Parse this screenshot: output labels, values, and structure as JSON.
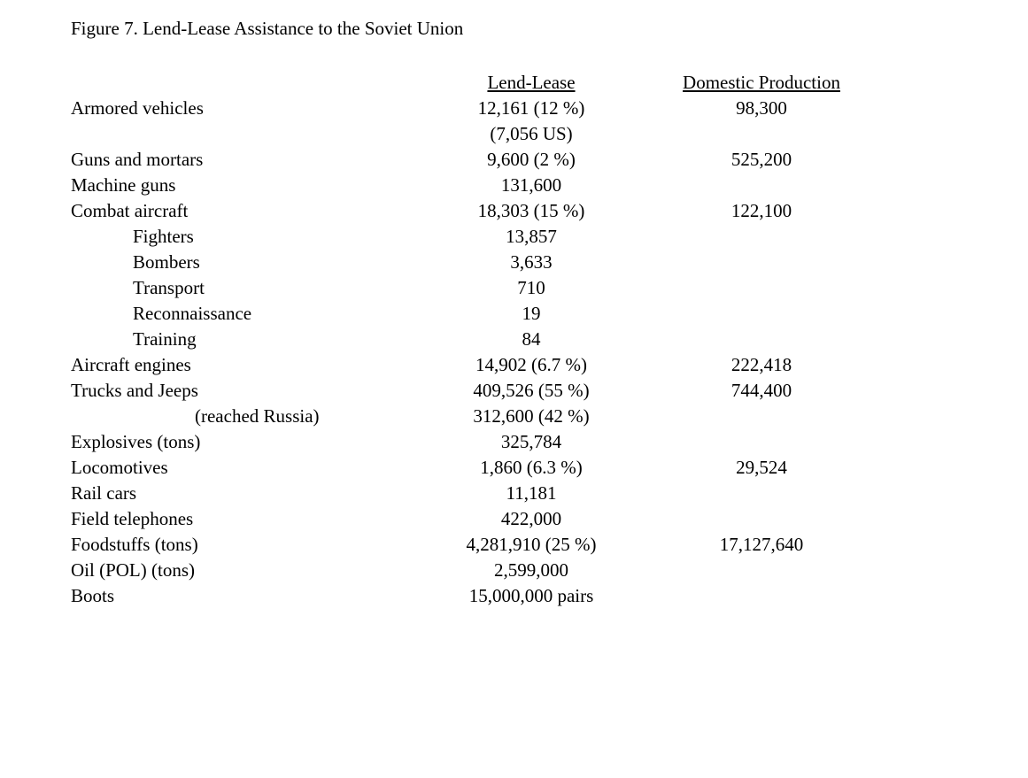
{
  "title": "Figure 7. Lend-Lease Assistance to the Soviet Union",
  "headers": {
    "col1": "",
    "col2": "Lend-Lease",
    "col3": "Domestic Production"
  },
  "rows": [
    {
      "label": "Armored vehicles",
      "indent": 0,
      "lend": "12,161 (12 %)",
      "dom": "98,300"
    },
    {
      "label": "",
      "indent": 0,
      "lend": "(7,056 US)",
      "dom": ""
    },
    {
      "label": "Guns and mortars",
      "indent": 0,
      "lend": "9,600 (2 %)",
      "dom": "525,200"
    },
    {
      "label": "Machine guns",
      "indent": 0,
      "lend": "131,600",
      "dom": ""
    },
    {
      "label": "Combat aircraft",
      "indent": 0,
      "lend": "18,303 (15 %)",
      "dom": "122,100"
    },
    {
      "label": "Fighters",
      "indent": 1,
      "lend": "13,857",
      "dom": ""
    },
    {
      "label": "Bombers",
      "indent": 1,
      "lend": "3,633",
      "dom": ""
    },
    {
      "label": "Transport",
      "indent": 1,
      "lend": "710",
      "dom": ""
    },
    {
      "label": "Reconnaissance",
      "indent": 1,
      "lend": "19",
      "dom": ""
    },
    {
      "label": "Training",
      "indent": 1,
      "lend": "84",
      "dom": ""
    },
    {
      "label": "Aircraft engines",
      "indent": 0,
      "lend": "14,902 (6.7 %)",
      "dom": "222,418"
    },
    {
      "label": "Trucks and Jeeps",
      "indent": 0,
      "lend": "409,526 (55 %)",
      "dom": "744,400"
    },
    {
      "label": "(reached Russia)",
      "indent": 2,
      "lend": "312,600 (42 %)",
      "dom": ""
    },
    {
      "label": "Explosives (tons)",
      "indent": 0,
      "lend": "325,784",
      "dom": ""
    },
    {
      "label": "Locomotives",
      "indent": 0,
      "lend": "1,860 (6.3 %)",
      "dom": "29,524"
    },
    {
      "label": "Rail cars",
      "indent": 0,
      "lend": "11,181",
      "dom": ""
    },
    {
      "label": "Field telephones",
      "indent": 0,
      "lend": "422,000",
      "dom": ""
    },
    {
      "label": "Foodstuffs (tons)",
      "indent": 0,
      "lend": "4,281,910 (25 %)",
      "dom": "17,127,640"
    },
    {
      "label": "Oil (POL) (tons)",
      "indent": 0,
      "lend": "2,599,000",
      "dom": ""
    },
    {
      "label": "Boots",
      "indent": 0,
      "lend": "15,000,000 pairs",
      "dom": ""
    }
  ]
}
